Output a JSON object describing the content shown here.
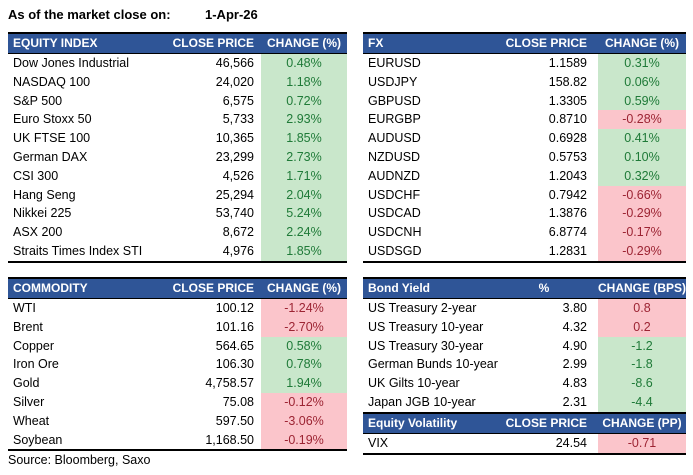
{
  "meta": {
    "as_of_label": "As of the market close on:",
    "as_of_date": "1-Apr-26",
    "source": "Source: Bloomberg, Saxo"
  },
  "colors": {
    "header_bg": "#2F5597",
    "header_text": "#FFFFFF",
    "green_bg": "#C9E7CB",
    "green_text": "#1F7A38",
    "red_bg": "#FBC5CB",
    "red_text": "#9C2433"
  },
  "tables": {
    "equity": {
      "headers": [
        "EQUITY INDEX",
        "CLOSE PRICE",
        "CHANGE (%)"
      ],
      "rows": [
        {
          "name": "Dow Jones Industrial",
          "price": "46,566",
          "change": "0.48%",
          "tone": "green"
        },
        {
          "name": "NASDAQ 100",
          "price": "24,020",
          "change": "1.18%",
          "tone": "green"
        },
        {
          "name": "S&P 500",
          "price": "6,575",
          "change": "0.72%",
          "tone": "green"
        },
        {
          "name": "Euro Stoxx 50",
          "price": "5,733",
          "change": "2.93%",
          "tone": "green"
        },
        {
          "name": "UK FTSE 100",
          "price": "10,365",
          "change": "1.85%",
          "tone": "green"
        },
        {
          "name": "German DAX",
          "price": "23,299",
          "change": "2.73%",
          "tone": "green"
        },
        {
          "name": "CSI 300",
          "price": "4,526",
          "change": "1.71%",
          "tone": "green"
        },
        {
          "name": "Hang Seng",
          "price": "25,294",
          "change": "2.04%",
          "tone": "green"
        },
        {
          "name": "Nikkei 225",
          "price": "53,740",
          "change": "5.24%",
          "tone": "green"
        },
        {
          "name": "ASX 200",
          "price": "8,672",
          "change": "2.24%",
          "tone": "green"
        },
        {
          "name": "Straits Times Index STI",
          "price": "4,976",
          "change": "1.85%",
          "tone": "green"
        }
      ]
    },
    "fx": {
      "headers": [
        "FX",
        "CLOSE PRICE",
        "CHANGE (%)"
      ],
      "rows": [
        {
          "name": "EURUSD",
          "price": "1.1589",
          "change": "0.31%",
          "tone": "green"
        },
        {
          "name": "USDJPY",
          "price": "158.82",
          "change": "0.06%",
          "tone": "green"
        },
        {
          "name": "GBPUSD",
          "price": "1.3305",
          "change": "0.59%",
          "tone": "green"
        },
        {
          "name": "EURGBP",
          "price": "0.8710",
          "change": "-0.28%",
          "tone": "red"
        },
        {
          "name": "AUDUSD",
          "price": "0.6928",
          "change": "0.41%",
          "tone": "green"
        },
        {
          "name": "NZDUSD",
          "price": "0.5753",
          "change": "0.10%",
          "tone": "green"
        },
        {
          "name": "AUDNZD",
          "price": "1.2043",
          "change": "0.32%",
          "tone": "green"
        },
        {
          "name": "USDCHF",
          "price": "0.7942",
          "change": "-0.66%",
          "tone": "red"
        },
        {
          "name": "USDCAD",
          "price": "1.3876",
          "change": "-0.29%",
          "tone": "red"
        },
        {
          "name": "USDCNH",
          "price": "6.8774",
          "change": "-0.17%",
          "tone": "red"
        },
        {
          "name": "USDSGD",
          "price": "1.2831",
          "change": "-0.29%",
          "tone": "red"
        }
      ]
    },
    "commodity": {
      "headers": [
        "COMMODITY",
        "CLOSE PRICE",
        "CHANGE (%)"
      ],
      "rows": [
        {
          "name": "WTI",
          "price": "100.12",
          "change": "-1.24%",
          "tone": "red"
        },
        {
          "name": "Brent",
          "price": "101.16",
          "change": "-2.70%",
          "tone": "red"
        },
        {
          "name": "Copper",
          "price": "564.65",
          "change": "0.58%",
          "tone": "green"
        },
        {
          "name": "Iron Ore",
          "price": "106.30",
          "change": "0.78%",
          "tone": "green"
        },
        {
          "name": "Gold",
          "price": "4,758.57",
          "change": "1.94%",
          "tone": "green"
        },
        {
          "name": "Silver",
          "price": "75.08",
          "change": "-0.12%",
          "tone": "red"
        },
        {
          "name": "Wheat",
          "price": "597.50",
          "change": "-3.06%",
          "tone": "red"
        },
        {
          "name": "Soybean",
          "price": "1,168.50",
          "change": "-0.19%",
          "tone": "red"
        }
      ]
    },
    "bond": {
      "headers": [
        "Bond Yield",
        "%",
        "CHANGE (BPS)"
      ],
      "rows": [
        {
          "name": "US Treasury 2-year",
          "price": "3.80",
          "change": "0.8",
          "tone": "red"
        },
        {
          "name": "US Treasury 10-year",
          "price": "4.32",
          "change": "0.2",
          "tone": "red"
        },
        {
          "name": "US Treasury 30-year",
          "price": "4.90",
          "change": "-1.2",
          "tone": "green"
        },
        {
          "name": "German Bunds 10-year",
          "price": "2.99",
          "change": "-1.8",
          "tone": "green"
        },
        {
          "name": "UK Gilts 10-year",
          "price": "4.83",
          "change": "-8.6",
          "tone": "green"
        },
        {
          "name": "Japan JGB 10-year",
          "price": "2.31",
          "change": "-4.4",
          "tone": "green"
        }
      ]
    },
    "volatility": {
      "headers": [
        "Equity Volatility",
        "CLOSE PRICE",
        "CHANGE (PP)"
      ],
      "rows": [
        {
          "name": "VIX",
          "price": "24.54",
          "change": "-0.71",
          "tone": "red"
        }
      ]
    }
  }
}
